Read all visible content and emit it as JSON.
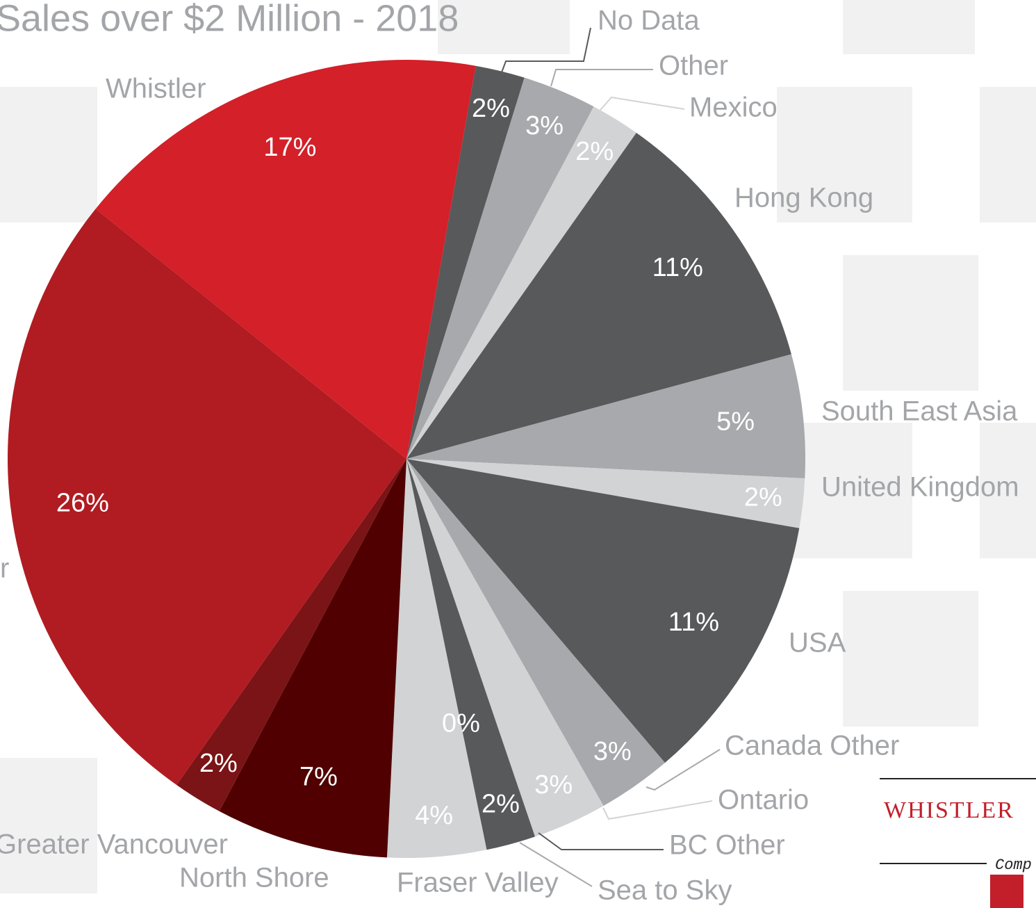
{
  "chart_data": {
    "type": "pie",
    "title": "Sales over $2 Million - 2018",
    "categories": [
      "No Data",
      "Other",
      "Mexico",
      "Hong Kong",
      "South East Asia",
      "United Kingdom",
      "USA",
      "Canada Other",
      "Ontario",
      "BC Other",
      "Sea to Sky",
      "Fraser Valley",
      "North Shore",
      "Greater Vancouver",
      "r",
      "Whistler"
    ],
    "values": [
      2,
      3,
      2,
      11,
      5,
      2,
      11,
      3,
      3,
      2,
      0,
      4,
      7,
      2,
      26,
      17
    ],
    "value_labels": [
      "2%",
      "3%",
      "2%",
      "11%",
      "5%",
      "2%",
      "11%",
      "3%",
      "3%",
      "2%",
      "0%",
      "4%",
      "7%",
      "2%",
      "26%",
      "17%"
    ],
    "colors": [
      "#58595b",
      "#a7a9ac",
      "#d1d3d4",
      "#58595b",
      "#a7a9ac",
      "#d1d3d4",
      "#58595b",
      "#a7a9ac",
      "#d1d3d4",
      "#58595b",
      "#a7a9ac",
      "#d1d3d4",
      "#500000",
      "#7a1416",
      "#b01c22",
      "#d32029"
    ]
  },
  "logo": {
    "name": "WHISTLER",
    "tagline": "Comp"
  }
}
